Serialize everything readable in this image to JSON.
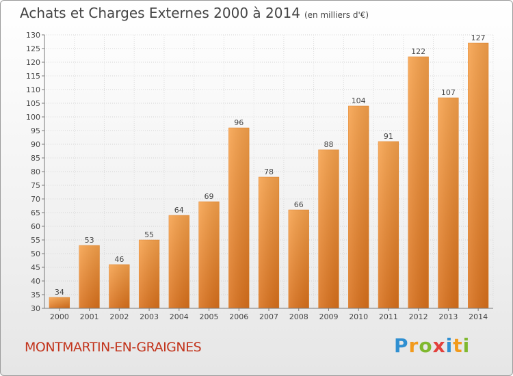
{
  "header": {
    "title": "Achats et Charges Externes 2000 à 2014",
    "subtitle": "(en milliers d'€)"
  },
  "footer": {
    "city": "MONTMARTIN-EN-GRAIGNES",
    "logo": {
      "letters": [
        "P",
        "r",
        "o",
        "x",
        "i",
        "t",
        "i"
      ],
      "colors": [
        "#2f8fd1",
        "#f29a1b",
        "#7fb82e",
        "#e2403c",
        "#2f8fd1",
        "#f29a1b",
        "#7fb82e"
      ]
    }
  },
  "chart_data": {
    "type": "bar",
    "categories": [
      "2000",
      "2001",
      "2002",
      "2003",
      "2004",
      "2005",
      "2006",
      "2007",
      "2008",
      "2009",
      "2010",
      "2011",
      "2012",
      "2013",
      "2014"
    ],
    "values": [
      34,
      53,
      46,
      55,
      64,
      69,
      96,
      78,
      66,
      88,
      104,
      91,
      122,
      107,
      127
    ],
    "ylim": [
      30,
      130
    ],
    "yticks": [
      30,
      35,
      40,
      45,
      50,
      55,
      60,
      65,
      70,
      75,
      80,
      85,
      90,
      95,
      100,
      105,
      110,
      115,
      120,
      125,
      130
    ],
    "grid": true,
    "bar_color": "#f08a24"
  }
}
